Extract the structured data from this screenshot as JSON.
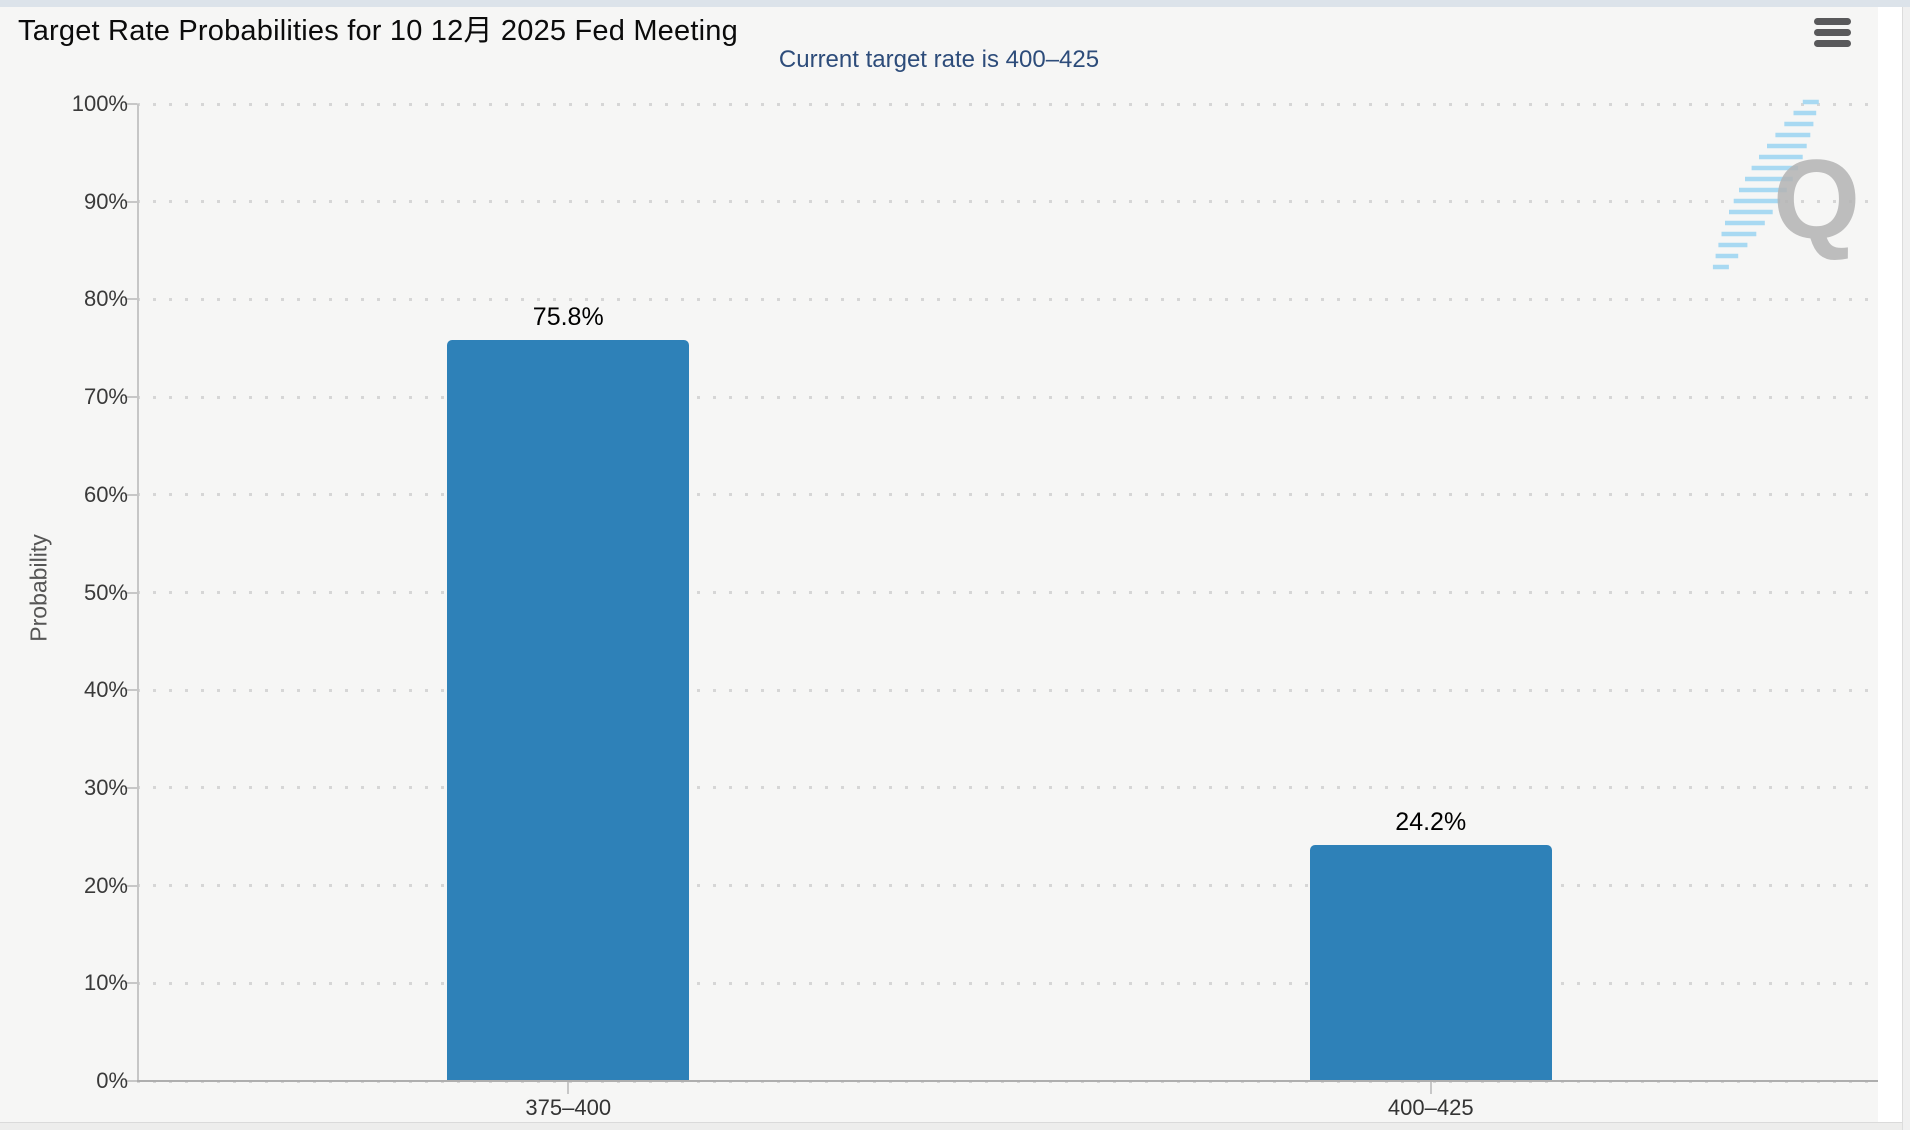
{
  "chart_data": {
    "type": "bar",
    "title": "Target Rate Probabilities for 10 12月 2025 Fed Meeting",
    "subtitle": "Current target rate is 400–425",
    "categories": [
      "375–400",
      "400–425"
    ],
    "values": [
      75.8,
      24.2
    ],
    "value_labels": [
      "75.8%",
      "24.2%"
    ],
    "ylabel": "Probability",
    "xlabel": "",
    "ylim": [
      0,
      100
    ],
    "ytick_labels": [
      "0%",
      "10%",
      "20%",
      "30%",
      "40%",
      "50%",
      "60%",
      "70%",
      "80%",
      "90%",
      "100%"
    ],
    "grid": "dotted-horizontal",
    "legend": "none",
    "bar_color": "#2E81B8",
    "watermark_letter": "Q"
  },
  "icons": {
    "menu": "hamburger-menu-icon"
  }
}
